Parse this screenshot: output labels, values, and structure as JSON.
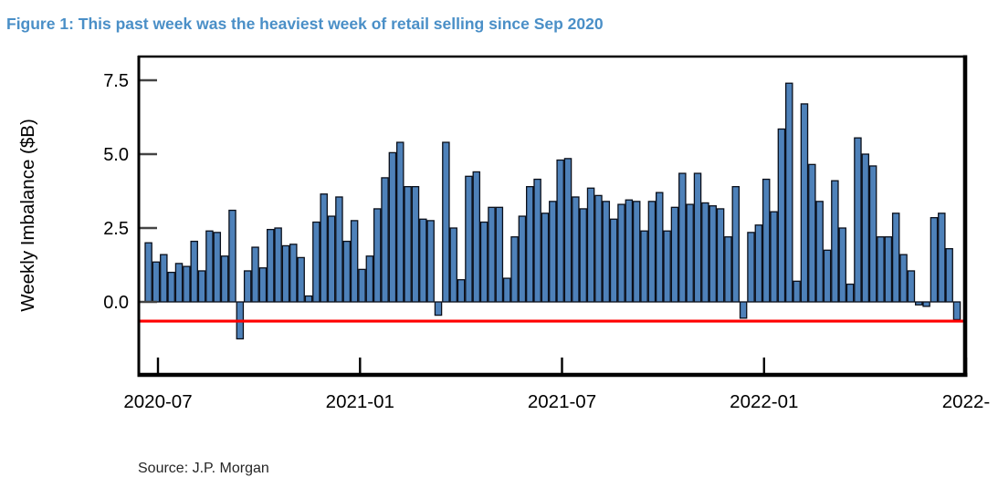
{
  "figure": {
    "title": "Figure 1: This past week was the heaviest week of retail selling since Sep 2020",
    "title_color": "#4a8fc7",
    "source": "Source: J.P. Morgan"
  },
  "chart_data": {
    "type": "bar",
    "title": "Figure 1: This past week was the heaviest week of retail selling since Sep 2020",
    "xlabel": "",
    "ylabel": "Weekly Imbalance ($B)",
    "frequency": "weekly",
    "x_range": [
      "2020-06",
      "2022-06"
    ],
    "x_tick_labels": [
      "2020-07",
      "2021-01",
      "2021-07",
      "2022-01",
      "2022-"
    ],
    "y_ticks": [
      0.0,
      2.5,
      5.0,
      7.5
    ],
    "y_tick_labels": [
      "0.0",
      "2.5",
      "5.0",
      "7.5"
    ],
    "ylim": [
      -2.4,
      8.3
    ],
    "grid": false,
    "legend": "none",
    "bar_color": "#4e81b9",
    "bar_edge_color": "#0a0f1a",
    "reference_line": {
      "value": -0.65,
      "color": "#ff0000"
    },
    "values": [
      2.0,
      1.35,
      1.6,
      1.0,
      1.3,
      1.2,
      2.05,
      1.05,
      2.4,
      2.35,
      1.55,
      3.1,
      -1.25,
      1.05,
      1.85,
      1.15,
      2.45,
      2.5,
      1.9,
      1.95,
      1.5,
      0.2,
      2.7,
      3.65,
      2.9,
      3.55,
      2.05,
      2.75,
      1.1,
      1.55,
      3.15,
      4.2,
      5.05,
      5.4,
      3.9,
      3.9,
      2.8,
      2.75,
      -0.45,
      5.4,
      2.5,
      0.75,
      4.25,
      4.4,
      2.7,
      3.2,
      3.2,
      0.8,
      2.2,
      2.9,
      3.9,
      4.15,
      3.0,
      3.4,
      4.8,
      4.85,
      3.55,
      3.15,
      3.85,
      3.6,
      3.4,
      2.8,
      3.3,
      3.45,
      3.4,
      2.4,
      3.4,
      3.7,
      2.4,
      3.2,
      4.35,
      3.3,
      4.35,
      3.35,
      3.25,
      3.15,
      2.2,
      3.9,
      -0.55,
      2.35,
      2.6,
      4.15,
      3.05,
      5.85,
      7.4,
      0.7,
      6.7,
      4.65,
      3.4,
      1.75,
      4.1,
      2.5,
      0.6,
      5.55,
      5.0,
      4.6,
      2.2,
      2.2,
      3.0,
      1.6,
      1.05,
      -0.1,
      -0.15,
      2.85,
      3.0,
      1.8,
      -0.6
    ]
  }
}
